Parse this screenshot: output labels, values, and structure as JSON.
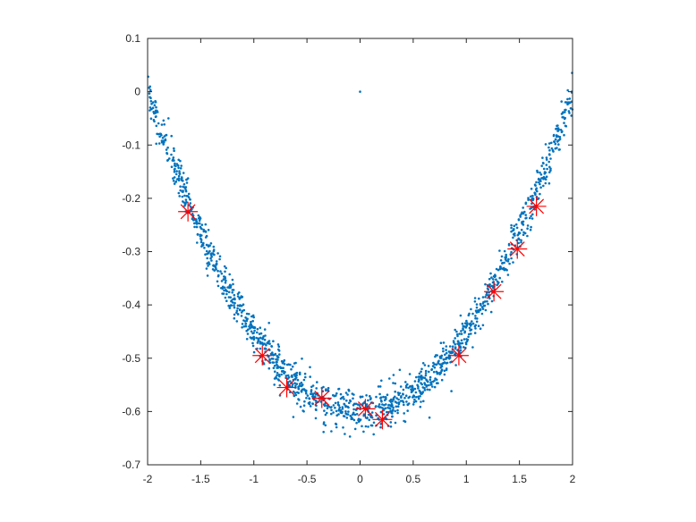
{
  "chart_data": {
    "type": "scatter",
    "title": "",
    "xlabel": "",
    "ylabel": "",
    "xlim": [
      -2,
      2
    ],
    "ylim": [
      -0.7,
      0.1
    ],
    "grid": false,
    "legend": "none",
    "x_ticks": [
      -2,
      -1.5,
      -1,
      -0.5,
      0,
      0.5,
      1,
      1.5,
      2
    ],
    "x_tick_labels": [
      "-2",
      "-1.5",
      "-1",
      "-0.5",
      "0",
      "0.5",
      "1",
      "1.5",
      "2"
    ],
    "y_ticks": [
      0.1,
      0,
      -0.1,
      -0.2,
      -0.3,
      -0.4,
      -0.5,
      -0.6,
      -0.7
    ],
    "y_tick_labels": [
      "0.1",
      "0",
      "-0.1",
      "-0.2",
      "-0.3",
      "-0.4",
      "-0.5",
      "-0.6",
      "-0.7"
    ],
    "series": [
      {
        "marker": "dot",
        "color": "#0072BD",
        "description": "noisy parabola y ≈ 0.15·x² − 0.6, about 1500 points over x ∈ [-2, 2], plus an isolated point at (0, 0)",
        "curve": {
          "a": 0.15,
          "c": -0.6,
          "x_range": [
            -2,
            2
          ],
          "count": 1500,
          "noise_sd": 0.018
        },
        "outliers": [
          [
            0,
            0
          ]
        ]
      },
      {
        "marker": "asterisk",
        "color": "#FF0000",
        "points": [
          [
            -1.62,
            -0.225
          ],
          [
            -0.92,
            -0.495
          ],
          [
            -0.69,
            -0.555
          ],
          [
            -0.36,
            -0.575
          ],
          [
            0.05,
            -0.595
          ],
          [
            0.21,
            -0.615
          ],
          [
            0.93,
            -0.495
          ],
          [
            1.26,
            -0.375
          ],
          [
            1.48,
            -0.295
          ],
          [
            1.66,
            -0.215
          ]
        ]
      }
    ]
  }
}
